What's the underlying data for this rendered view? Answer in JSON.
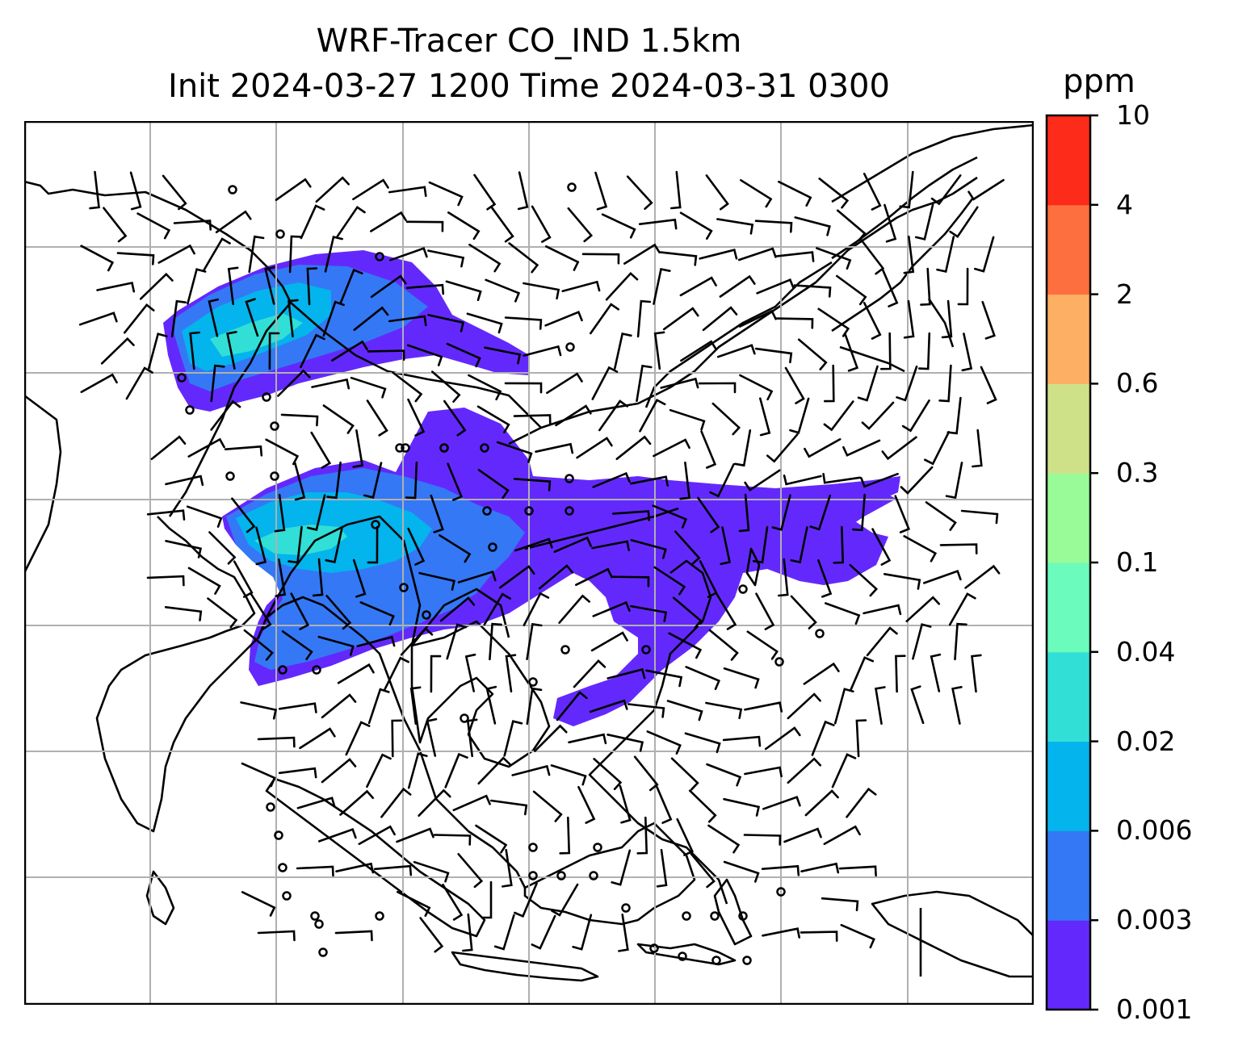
{
  "title": {
    "line1": "WRF-Tracer CO_IND 1.5km",
    "line2": "Init 2024-03-27 1200 Time 2024-03-31 0300"
  },
  "colorbar": {
    "unit": "ppm",
    "levels": [
      "0.001",
      "0.003",
      "0.006",
      "0.02",
      "0.04",
      "0.1",
      "0.3",
      "0.6",
      "2",
      "4",
      "10"
    ],
    "colors": [
      "#6329fc",
      "#3478f6",
      "#04b4ec",
      "#31dfd7",
      "#6bfbbc",
      "#98fb97",
      "#cfe188",
      "#fdaf64",
      "#fd6f3e",
      "#fd2b1a"
    ]
  },
  "map": {
    "gridlines": "on",
    "projection": "regional map of South and Southeast Asia with coastlines and country borders",
    "plume_colors": {
      "light": "#6329fc",
      "medium": "#3478f6",
      "core": "#04b4ec",
      "peak": "#31dfd7"
    },
    "land_outline_color": "#000000",
    "grid_color": "#b0b0b0",
    "wind_symbols": "wind barbs and calm circles"
  }
}
